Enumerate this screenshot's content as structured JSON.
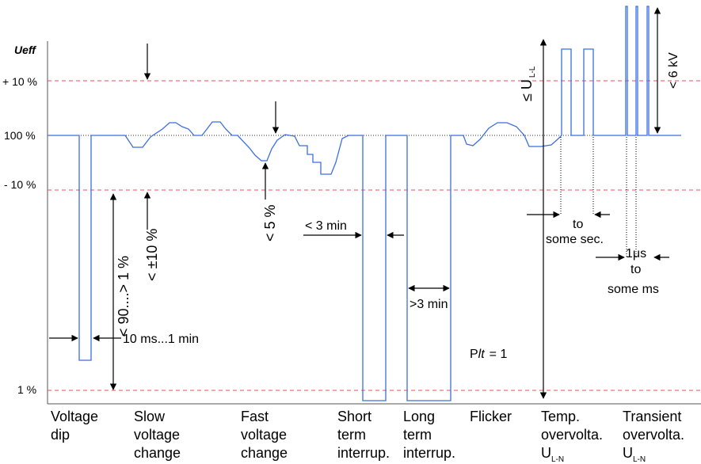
{
  "axis": {
    "y_title": "Ueff",
    "ticks": {
      "plus10": "+ 10 %",
      "hundred": "100 %",
      "minus10": "- 10 %",
      "one": "1 %"
    }
  },
  "annotations": {
    "dip_depth": "< 90....> 1 %",
    "dip_duration": "10 ms...1 min",
    "slow_change": "< ±10 %",
    "fast_change": "< 5 %",
    "short_duration": "< 3 min",
    "long_duration": ">3 min",
    "flicker_plt_p": "P",
    "flicker_plt_lt": "lt",
    "flicker_plt_eq": "= 1",
    "overvoltage_max_pre": "≤ U",
    "overvoltage_max_sub": "L-L",
    "temp_duration_to": "to",
    "temp_duration_range": "some sec.",
    "transient_amplitude": "< 6 kV",
    "transient_duration_from": "1μs",
    "transient_duration_to": "to",
    "transient_duration_range": "some ms"
  },
  "categories": [
    {
      "lines": [
        "Voltage",
        "dip"
      ]
    },
    {
      "lines": [
        "Slow",
        "voltage",
        "change"
      ]
    },
    {
      "lines": [
        "Fast",
        "voltage",
        "change"
      ]
    },
    {
      "lines": [
        "Short",
        "term",
        "interrup."
      ]
    },
    {
      "lines": [
        "Long",
        "term",
        "interrup."
      ]
    },
    {
      "lines": [
        "Flicker"
      ]
    },
    {
      "lines": [
        "Temp.",
        "overvolta."
      ],
      "sym": "U",
      "sub": "L-N"
    },
    {
      "lines": [
        "Transient",
        "overvolta."
      ],
      "sym": "U",
      "sub": "L-N"
    }
  ],
  "colors": {
    "waveform": "#3b6fe0",
    "limit_lines": "#e8505b",
    "axis": "#555555",
    "nominal_dotted": "#333333"
  }
}
